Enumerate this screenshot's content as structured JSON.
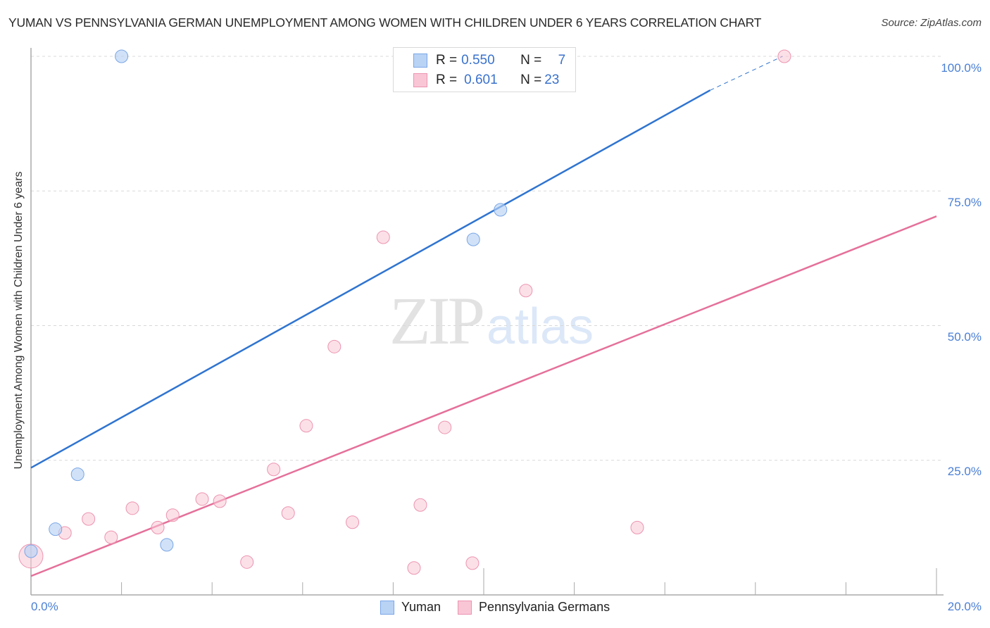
{
  "header": {
    "title": "YUMAN VS PENNSYLVANIA GERMAN UNEMPLOYMENT AMONG WOMEN WITH CHILDREN UNDER 6 YEARS CORRELATION CHART",
    "source": "Source: ZipAtlas.com"
  },
  "watermark": {
    "zip": "ZIP",
    "atlas": "atlas"
  },
  "legend": {
    "rows": [
      {
        "r_label": "R = ",
        "r_value": "0.550",
        "n_label": "N = ",
        "n_value": "7",
        "color": "#b9d3f5",
        "border": "#7aa6e6"
      },
      {
        "r_label": "R = ",
        "r_value": "0.601",
        "n_label": "N = ",
        "n_value": "23",
        "color": "#f9c6d6",
        "border": "#ec94b0"
      }
    ]
  },
  "bottom_legend": [
    {
      "label": "Yuman",
      "color": "#b9d3f5",
      "border": "#7aa6e6"
    },
    {
      "label": "Pennsylvania Germans",
      "color": "#f9c6d6",
      "border": "#ec94b0"
    }
  ],
  "axes": {
    "ylabel": "Unemployment Among Women with Children Under 6 years",
    "y_ticks": [
      "100.0%",
      "75.0%",
      "50.0%",
      "25.0%"
    ],
    "x_ticks": [
      "0.0%",
      "20.0%"
    ]
  },
  "colors": {
    "yuman_line": "#2f74d0",
    "penn_line": "#e5709a",
    "grid": "#d8d8d8",
    "axis": "#aaaaaa",
    "tick_label": "#4a7fd4"
  },
  "chart_data": {
    "type": "scatter",
    "title": "YUMAN VS PENNSYLVANIA GERMAN UNEMPLOYMENT AMONG WOMEN WITH CHILDREN UNDER 6 YEARS CORRELATION CHART",
    "xlabel": "",
    "ylabel": "Unemployment Among Women with Children Under 6 years",
    "xlim": [
      0,
      20
    ],
    "ylim": [
      0,
      100
    ],
    "x_unit": "%",
    "y_unit": "%",
    "grid": {
      "y": true,
      "x": false
    },
    "legend_position": "top-center (stats) and bottom-center (series)",
    "series": [
      {
        "name": "Yuman",
        "color": "#b9d3f5",
        "R": 0.55,
        "N": 7,
        "points": [
          {
            "x": 0.0,
            "y": 8.1
          },
          {
            "x": 0.54,
            "y": 12.2
          },
          {
            "x": 1.03,
            "y": 22.4
          },
          {
            "x": 2.0,
            "y": 100.0
          },
          {
            "x": 3.0,
            "y": 9.3
          },
          {
            "x": 9.77,
            "y": 66.0
          },
          {
            "x": 10.37,
            "y": 71.5
          }
        ],
        "trendline": {
          "x0": 0,
          "y0": 23.6,
          "x1": 15.0,
          "y1": 93.7,
          "dashed_extension_to": {
            "x": 16.6,
            "y": 100
          }
        }
      },
      {
        "name": "Pennsylvania Germans",
        "color": "#f9c6d6",
        "R": 0.601,
        "N": 23,
        "points": [
          {
            "x": 0.0,
            "y": 7.2
          },
          {
            "x": 0.75,
            "y": 11.5
          },
          {
            "x": 1.27,
            "y": 14.1
          },
          {
            "x": 1.77,
            "y": 10.7
          },
          {
            "x": 2.24,
            "y": 16.1
          },
          {
            "x": 2.8,
            "y": 12.5
          },
          {
            "x": 3.13,
            "y": 14.8
          },
          {
            "x": 3.78,
            "y": 17.8
          },
          {
            "x": 4.17,
            "y": 17.4
          },
          {
            "x": 4.77,
            "y": 6.1
          },
          {
            "x": 5.36,
            "y": 23.3
          },
          {
            "x": 5.68,
            "y": 15.2
          },
          {
            "x": 6.08,
            "y": 31.4
          },
          {
            "x": 6.7,
            "y": 46.1
          },
          {
            "x": 7.1,
            "y": 13.5
          },
          {
            "x": 7.78,
            "y": 66.4
          },
          {
            "x": 8.46,
            "y": 5.0
          },
          {
            "x": 8.6,
            "y": 16.7
          },
          {
            "x": 9.14,
            "y": 31.1
          },
          {
            "x": 9.75,
            "y": 5.9
          },
          {
            "x": 10.93,
            "y": 56.5
          },
          {
            "x": 13.39,
            "y": 12.5
          },
          {
            "x": 16.64,
            "y": 100.0
          }
        ],
        "trendline": {
          "x0": 0,
          "y0": 3.5,
          "x1": 20,
          "y1": 70.3
        }
      }
    ]
  }
}
